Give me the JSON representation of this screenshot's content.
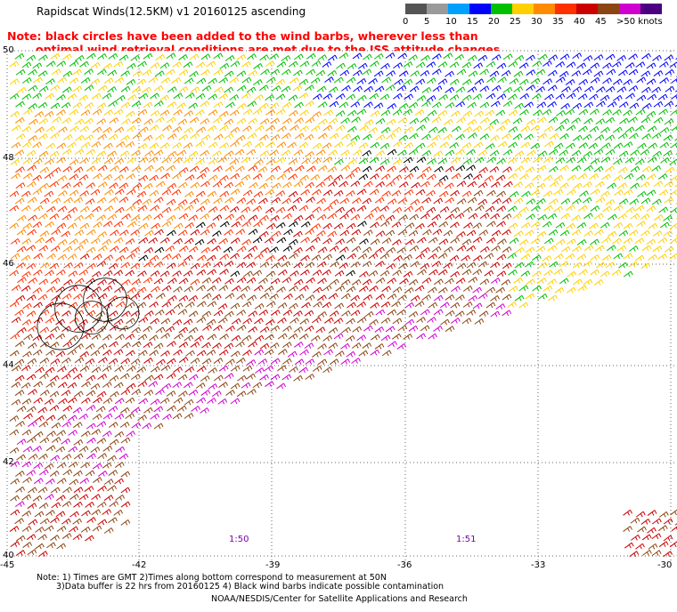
{
  "title": "Rapidscat Winds(12.5KM) v1 20160125 ascending",
  "note_line1": "Note: black circles have been added to the wind barbs, wherever less than",
  "note_line2": "optimal wind retrieval conditions are met due to the ISS attitude changes.",
  "colorbar": {
    "colors": [
      "#555555",
      "#9a9a9a",
      "#00a0ff",
      "#0000ff",
      "#00c000",
      "#ffd000",
      "#ff8c00",
      "#ff3000",
      "#cc0000",
      "#8b4513",
      "#d000d0",
      "#4b0082"
    ],
    "labels": [
      "0",
      "5",
      "10",
      "15",
      "20",
      "25",
      "30",
      "35",
      "40",
      "45",
      ">50 knots"
    ]
  },
  "map": {
    "lat_labels": [
      "50",
      "48",
      "46",
      "44",
      "42",
      "40"
    ],
    "lon_labels": [
      "-45",
      "-42",
      "-39",
      "-36",
      "-33",
      "-30"
    ],
    "time_labels": [
      "1:50",
      "1:51"
    ],
    "colors": {
      "calm_gray": "#555555",
      "blue": "#0000ff",
      "green": "#00c000",
      "yellow": "#ffd000",
      "orange": "#ff8c00",
      "red_orange": "#ff3000",
      "red": "#cc0000",
      "brown": "#8b4513",
      "magenta": "#d000d0",
      "contaminated": "#000000"
    }
  },
  "footnote_line1": "Note: 1) Times are GMT 2)Times along bottom correspond to measurement at 50N",
  "footnote_line2": "3)Data buffer is 22 hrs from 20160125 4) Black wind barbs indicate possible contamination",
  "credit": "NOAA/NESDIS/Center for Satellite Applications and Research"
}
